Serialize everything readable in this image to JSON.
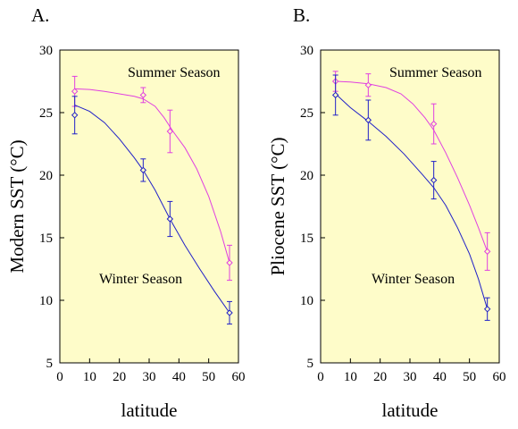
{
  "colors": {
    "background": "#ffffff",
    "plot_background": "#fefcc9",
    "summer": "#e040e0",
    "winter": "#2020c8",
    "axis": "#000000"
  },
  "chart_data": [
    {
      "type": "scatter",
      "panel_label": "A.",
      "xlabel": "latitude",
      "ylabel": "Modern SST (°C)",
      "xlim": [
        0,
        60
      ],
      "ylim": [
        5,
        30
      ],
      "xticks": [
        0,
        10,
        20,
        30,
        40,
        50,
        60
      ],
      "yticks": [
        5,
        10,
        15,
        20,
        25,
        30
      ],
      "grid": false,
      "legend": "none",
      "annotations": [
        {
          "text": "Summer Season",
          "series": "summer"
        },
        {
          "text": "Winter Season",
          "series": "winter"
        }
      ],
      "series": [
        {
          "key": "summer",
          "marker": "diamond",
          "points": [
            {
              "x": 5,
              "y": 26.7,
              "err": 1.2
            },
            {
              "x": 28,
              "y": 26.4,
              "err": 0.6
            },
            {
              "x": 37,
              "y": 23.5,
              "err": 1.7
            },
            {
              "x": 57,
              "y": 13.0,
              "err": 1.4
            }
          ],
          "curve": [
            [
              5,
              26.9
            ],
            [
              10,
              26.85
            ],
            [
              15,
              26.7
            ],
            [
              20,
              26.5
            ],
            [
              25,
              26.3
            ],
            [
              28,
              26.1
            ],
            [
              32,
              25.5
            ],
            [
              35,
              24.6
            ],
            [
              38,
              23.5
            ],
            [
              42,
              22.2
            ],
            [
              46,
              20.5
            ],
            [
              50,
              18.3
            ],
            [
              54,
              15.5
            ],
            [
              57,
              13.0
            ]
          ]
        },
        {
          "key": "winter",
          "marker": "diamond",
          "points": [
            {
              "x": 5,
              "y": 24.8,
              "err": 1.5
            },
            {
              "x": 28,
              "y": 20.4,
              "err": 0.9
            },
            {
              "x": 37,
              "y": 16.5,
              "err": 1.4
            },
            {
              "x": 57,
              "y": 9.0,
              "err": 0.9
            }
          ],
          "curve": [
            [
              5,
              25.6
            ],
            [
              10,
              25.1
            ],
            [
              15,
              24.2
            ],
            [
              20,
              22.9
            ],
            [
              25,
              21.4
            ],
            [
              28,
              20.4
            ],
            [
              32,
              18.8
            ],
            [
              37,
              16.5
            ],
            [
              42,
              14.4
            ],
            [
              47,
              12.5
            ],
            [
              52,
              10.7
            ],
            [
              57,
              9.0
            ]
          ]
        }
      ]
    },
    {
      "type": "scatter",
      "panel_label": "B.",
      "xlabel": "latitude",
      "ylabel": "Pliocene SST (°C)",
      "xlim": [
        0,
        60
      ],
      "ylim": [
        5,
        30
      ],
      "xticks": [
        0,
        10,
        20,
        30,
        40,
        50,
        60
      ],
      "yticks": [
        5,
        10,
        15,
        20,
        25,
        30
      ],
      "grid": false,
      "legend": "none",
      "annotations": [
        {
          "text": "Summer Season",
          "series": "summer"
        },
        {
          "text": "Winter Season",
          "series": "winter"
        }
      ],
      "series": [
        {
          "key": "summer",
          "marker": "diamond",
          "points": [
            {
              "x": 5,
              "y": 27.5,
              "err": 0.8
            },
            {
              "x": 16,
              "y": 27.2,
              "err": 0.9
            },
            {
              "x": 38,
              "y": 24.1,
              "err": 1.6
            },
            {
              "x": 56,
              "y": 13.9,
              "err": 1.5
            }
          ],
          "curve": [
            [
              5,
              27.5
            ],
            [
              10,
              27.45
            ],
            [
              16,
              27.3
            ],
            [
              22,
              27.0
            ],
            [
              27,
              26.5
            ],
            [
              31,
              25.7
            ],
            [
              35,
              24.6
            ],
            [
              38,
              23.6
            ],
            [
              42,
              21.8
            ],
            [
              46,
              19.8
            ],
            [
              50,
              17.6
            ],
            [
              53,
              15.8
            ],
            [
              56,
              13.9
            ]
          ]
        },
        {
          "key": "winter",
          "marker": "diamond",
          "points": [
            {
              "x": 5,
              "y": 26.4,
              "err": 1.6
            },
            {
              "x": 16,
              "y": 24.4,
              "err": 1.6
            },
            {
              "x": 38,
              "y": 19.6,
              "err": 1.5
            },
            {
              "x": 56,
              "y": 9.3,
              "err": 0.9
            }
          ],
          "curve": [
            [
              5,
              26.5
            ],
            [
              10,
              25.4
            ],
            [
              16,
              24.3
            ],
            [
              22,
              23.1
            ],
            [
              28,
              21.7
            ],
            [
              34,
              20.1
            ],
            [
              38,
              19.0
            ],
            [
              42,
              17.6
            ],
            [
              46,
              15.8
            ],
            [
              50,
              13.7
            ],
            [
              53,
              11.7
            ],
            [
              56,
              9.3
            ]
          ]
        }
      ]
    }
  ]
}
